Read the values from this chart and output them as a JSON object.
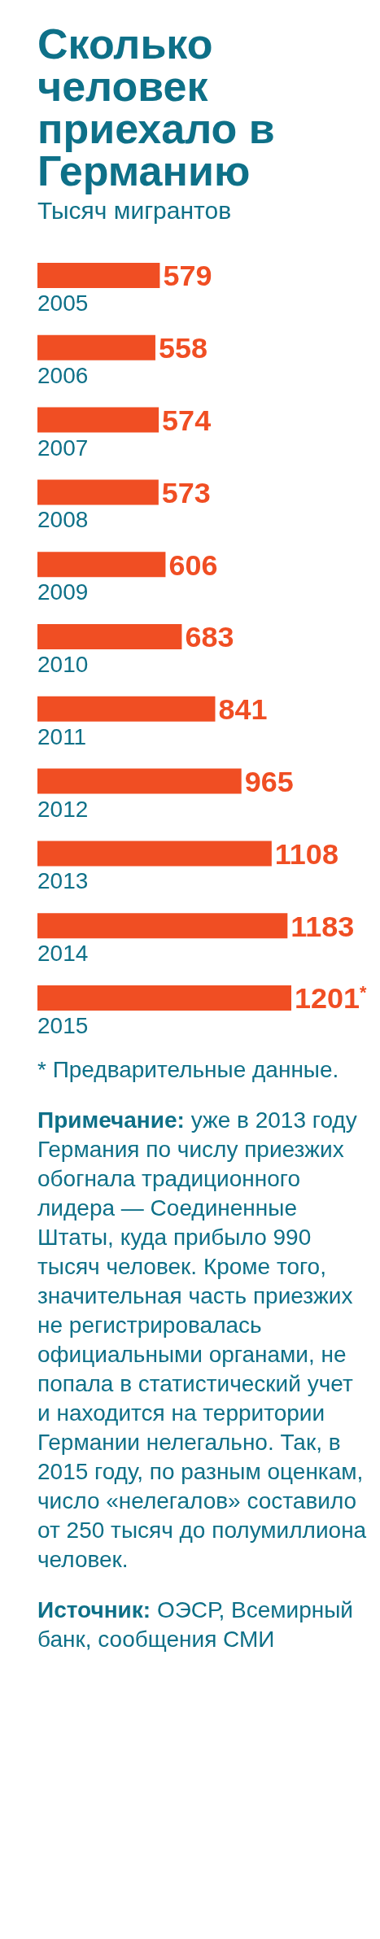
{
  "chart_data": {
    "type": "bar",
    "orientation": "horizontal",
    "title": "Сколько человек приехало в Германию",
    "subtitle": "Тысяч мигрантов",
    "categories": [
      "2005",
      "2006",
      "2007",
      "2008",
      "2009",
      "2010",
      "2011",
      "2012",
      "2013",
      "2014",
      "2015"
    ],
    "values": [
      579,
      558,
      574,
      573,
      606,
      683,
      841,
      965,
      1108,
      1183,
      1201
    ],
    "value_labels": [
      "579",
      "558",
      "574",
      "573",
      "606",
      "683",
      "841",
      "965",
      "1108",
      "1183",
      "1201$^{*}$"
    ],
    "color": "#f04e23",
    "annotations": [
      "* Предварительные данные.",
      "Примечание: уже в 2013 году Германия по числу приезжих обогнала традиционного лидера — Соединенные Штаты, куда прибыло 990 тысяч человек. Кроме того, значительная часть приезжих не регистрировалась официальными органами, не попала в статистический учет и находится на территории Германии нелегально. Так, в 2015 году, по разным оценкам, число «нелегалов» составило от 250 тысяч до полумиллиона человек.",
      "Источник: ОЭСР, Всемирный банк, сообщения СМИ"
    ]
  }
}
